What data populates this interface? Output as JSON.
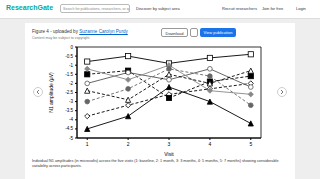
{
  "header": {
    "logo": "ResearchGate",
    "search": "Search for publications, researchers, or questions",
    "discover": "Discover by subject area",
    "links": [
      "Recruit researchers",
      "Join for free",
      "Login"
    ]
  },
  "figure": {
    "title_prefix": "Figure 4 - uploaded by",
    "author": "Suzanne Carolyn Purdy",
    "notice": "Content may be subject to copyright.",
    "download": "Download",
    "view": "View publication",
    "caption": "Individual N1 amplitudes (in microvolts) across the five visits (1: baseline, 2: 1 month, 3: 3 months, 4: 5 months, 5: 7 months) showing considerable variability across participants."
  },
  "chart_data": {
    "type": "line",
    "x_label": "Visit",
    "y_label": "N1 amplitude (µV)",
    "x": [
      1,
      2,
      3,
      4,
      5
    ],
    "xlim": [
      0.75,
      5.25
    ],
    "xticks": [
      1,
      2,
      3,
      4,
      5
    ],
    "ylim": [
      -5,
      0
    ],
    "yticks": [
      0,
      -0.5,
      -1,
      -1.5,
      -2,
      -2.5,
      -3,
      -3.5,
      -4,
      -4.5,
      -5
    ],
    "grid": false,
    "series": [
      {
        "color": "#000000",
        "marker": "square_open",
        "line_style": "solid",
        "values": [
          -0.8,
          -0.5,
          -0.9,
          -0.6,
          -0.4
        ]
      },
      {
        "color": "#000000",
        "marker": "triangle_filled",
        "line_style": "solid",
        "values": [
          -4.5,
          -3.8,
          -2.2,
          -3.0,
          -4.2
        ]
      },
      {
        "color": "#000000",
        "marker": "diamond_open",
        "line_style": "dashed",
        "values": [
          -3.8,
          -3.2,
          -2.6,
          -2.3,
          -2.0
        ]
      },
      {
        "color": "#000000",
        "marker": "square_filled",
        "line_style": "dashed",
        "values": [
          -1.5,
          -1.3,
          -2.8,
          -1.9,
          -1.6
        ]
      },
      {
        "color": "#555555",
        "marker": "circle_open",
        "line_style": "solid",
        "values": [
          -2.0,
          -1.4,
          -1.8,
          -1.2,
          -2.2
        ]
      },
      {
        "color": "#888888",
        "marker": "diamond_filled",
        "line_style": "solid",
        "values": [
          -1.2,
          -1.8,
          -1.0,
          -2.4,
          -2.6
        ]
      },
      {
        "color": "#000000",
        "marker": "triangle_open",
        "line_style": "dashed",
        "values": [
          -2.4,
          -2.9,
          -1.5,
          -2.0,
          -1.3
        ]
      },
      {
        "color": "#666666",
        "marker": "circle_filled",
        "line_style": "dashed",
        "values": [
          -3.0,
          -2.3,
          -1.2,
          -1.6,
          -3.2
        ]
      }
    ]
  }
}
